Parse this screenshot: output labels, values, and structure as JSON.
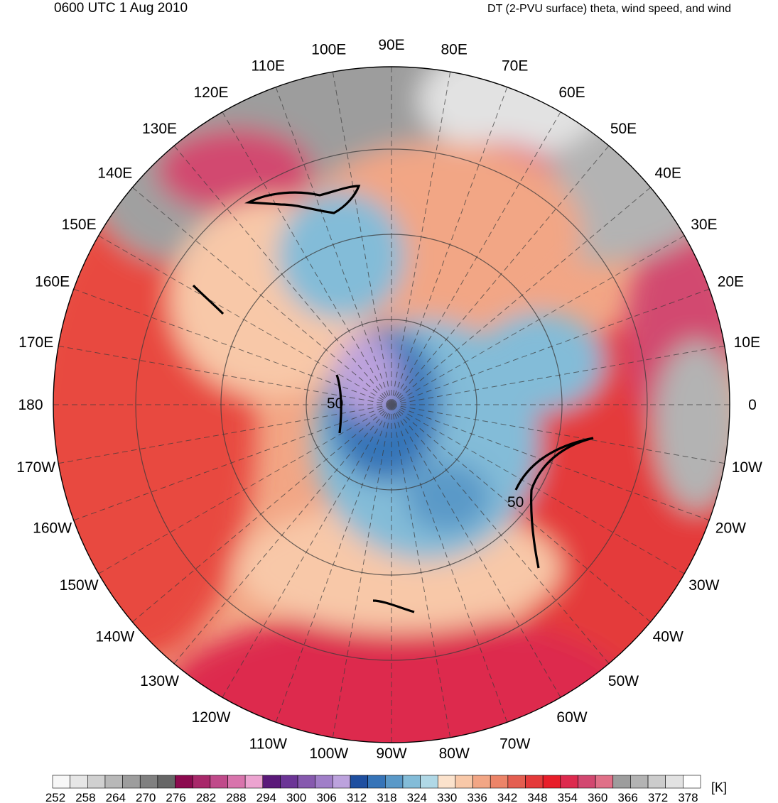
{
  "header": {
    "time": "0600 UTC 1 Aug 2010",
    "title": "DT (2-PVU surface) theta, wind speed, and wind"
  },
  "map": {
    "projection": "north-polar-stereographic",
    "variable": "theta",
    "wind_speed_contour_label": "50",
    "longitude_labels": [
      "90E",
      "80E",
      "70E",
      "60E",
      "50E",
      "40E",
      "30E",
      "20E",
      "10E",
      "0",
      "10W",
      "20W",
      "30W",
      "40W",
      "50W",
      "60W",
      "70W",
      "80W",
      "90W",
      "100W",
      "110W",
      "120W",
      "130W",
      "140W",
      "150W",
      "160W",
      "170W",
      "180",
      "170E",
      "160E",
      "150E",
      "140E",
      "130E",
      "120E",
      "110E",
      "100E"
    ]
  },
  "colorbar": {
    "unit": "[K]",
    "tick_labels": [
      "252",
      "258",
      "264",
      "270",
      "276",
      "282",
      "288",
      "294",
      "300",
      "306",
      "312",
      "318",
      "324",
      "330",
      "336",
      "342",
      "348",
      "354",
      "360",
      "366",
      "372",
      "378"
    ],
    "colors": [
      "#f7f7f7",
      "#e6e6e6",
      "#d0d0d0",
      "#b8b8b8",
      "#9d9d9d",
      "#808080",
      "#666666",
      "#8c0a4f",
      "#a8286a",
      "#c04a8a",
      "#d874ac",
      "#eca3d0",
      "#5b1a7a",
      "#6c3596",
      "#8659ae",
      "#a07ec8",
      "#bca2dd",
      "#1f4fa0",
      "#3674b8",
      "#5a99c8",
      "#83bcd8",
      "#b0d8e6",
      "#fbe2cc",
      "#f8c8a8",
      "#f2a685",
      "#ec8468",
      "#e45e50",
      "#e43a3a",
      "#e81e2a",
      "#dd2a4e",
      "#d24870",
      "#e07088",
      "#9d9d9d",
      "#b3b3b3",
      "#cccccc",
      "#e2e2e2",
      "#ffffff"
    ]
  }
}
